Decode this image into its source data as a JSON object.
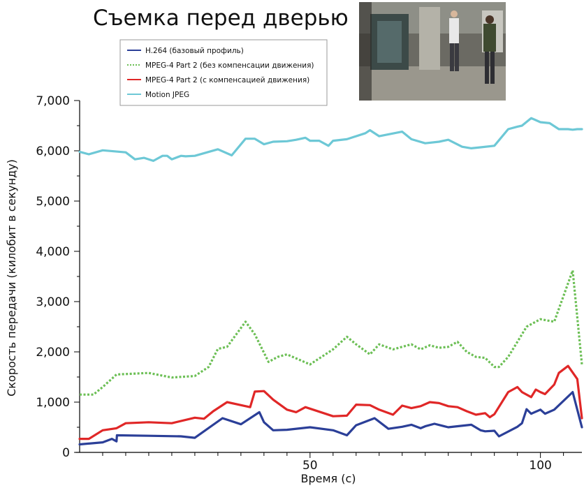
{
  "chart_data": {
    "type": "line",
    "title": "Съемка перед дверью",
    "xlabel": "Время (с)",
    "ylabel": "Скорость передачи (килобит в секунду)",
    "xlim": [
      0,
      109
    ],
    "ylim": [
      0,
      7000
    ],
    "x_ticks": [
      50,
      100
    ],
    "x_tick_labels": [
      "50",
      "100"
    ],
    "y_ticks": [
      0,
      1000,
      2000,
      3000,
      4000,
      5000,
      6000,
      7000
    ],
    "y_tick_labels": [
      "0",
      "1,000",
      "2,000",
      "3,000",
      "4,000",
      "5,000",
      "6,000",
      "7,000"
    ],
    "grid": false,
    "legend_position": "top-left",
    "series": [
      {
        "name": "H.264 (базовый профиль)",
        "color": "#2b3f98",
        "style": "solid",
        "x": [
          0,
          5,
          7,
          8,
          8.1,
          15,
          22,
          25,
          31,
          35,
          39,
          40,
          42,
          45,
          50,
          55,
          58,
          60,
          64,
          67,
          70,
          72,
          74,
          75,
          77,
          80,
          85,
          87,
          88,
          90,
          91,
          95,
          96,
          97,
          98,
          100,
          101,
          103,
          107,
          109
        ],
        "y": [
          160,
          200,
          270,
          220,
          340,
          330,
          320,
          290,
          680,
          560,
          800,
          600,
          440,
          450,
          500,
          440,
          340,
          540,
          680,
          470,
          510,
          550,
          480,
          520,
          570,
          500,
          550,
          440,
          420,
          430,
          320,
          510,
          580,
          860,
          770,
          850,
          770,
          850,
          1200,
          500
        ]
      },
      {
        "name": "MPEG-4 Part 2 (без компенсации движения)",
        "color": "#6cbf55",
        "style": "dotted",
        "x": [
          0,
          3,
          5,
          8,
          15,
          20,
          25,
          28,
          30,
          32,
          34,
          36,
          38,
          41,
          43,
          45,
          50,
          55,
          58,
          60,
          63,
          65,
          68,
          70,
          72,
          74,
          76,
          78,
          80,
          82,
          84,
          86,
          88,
          90,
          91,
          93,
          95,
          97,
          99,
          100,
          103,
          107,
          109
        ],
        "y": [
          1150,
          1150,
          1300,
          1550,
          1580,
          1490,
          1520,
          1700,
          2060,
          2100,
          2350,
          2600,
          2350,
          1800,
          1900,
          1950,
          1750,
          2050,
          2300,
          2150,
          1950,
          2150,
          2050,
          2100,
          2150,
          2050,
          2130,
          2080,
          2100,
          2200,
          2000,
          1900,
          1880,
          1700,
          1700,
          1900,
          2200,
          2500,
          2600,
          2650,
          2600,
          3620,
          1750
        ]
      },
      {
        "name": "MPEG-4 Part 2 (с компенсацией движения)",
        "color": "#e02727",
        "style": "solid",
        "x": [
          0,
          2,
          5,
          8,
          10,
          15,
          20,
          25,
          27,
          29,
          32,
          35,
          37,
          38,
          40,
          42,
          45,
          47,
          49,
          52,
          55,
          58,
          60,
          63,
          65,
          68,
          70,
          72,
          74,
          76,
          78,
          80,
          82,
          84,
          86,
          88,
          89,
          90,
          93,
          95,
          96,
          98,
          99,
          100,
          101,
          103,
          104,
          106,
          108,
          109
        ],
        "y": [
          270,
          270,
          440,
          480,
          580,
          600,
          580,
          690,
          670,
          820,
          1000,
          940,
          900,
          1210,
          1220,
          1050,
          850,
          800,
          900,
          810,
          720,
          730,
          950,
          940,
          850,
          750,
          930,
          880,
          920,
          1000,
          980,
          920,
          900,
          820,
          750,
          780,
          700,
          760,
          1200,
          1300,
          1200,
          1100,
          1250,
          1200,
          1160,
          1350,
          1580,
          1720,
          1460,
          680
        ]
      },
      {
        "name": "Motion JPEG",
        "color": "#6dc8d6",
        "style": "solid",
        "x": [
          0,
          2,
          5,
          10,
          12,
          14,
          16,
          18,
          19,
          20,
          22,
          23,
          25,
          30,
          33,
          36,
          37,
          38,
          40,
          42,
          45,
          47,
          49,
          50,
          52,
          54,
          55,
          58,
          62,
          63,
          65,
          70,
          72,
          75,
          78,
          80,
          83,
          85,
          87,
          90,
          93,
          95,
          96,
          98,
          100,
          102,
          104,
          106,
          107,
          108,
          109
        ],
        "y": [
          5980,
          5930,
          6010,
          5970,
          5830,
          5860,
          5800,
          5900,
          5900,
          5830,
          5900,
          5890,
          5900,
          6030,
          5910,
          6240,
          6240,
          6240,
          6130,
          6180,
          6190,
          6220,
          6260,
          6200,
          6200,
          6100,
          6200,
          6230,
          6350,
          6410,
          6290,
          6380,
          6230,
          6150,
          6180,
          6220,
          6080,
          6050,
          6070,
          6100,
          6430,
          6480,
          6500,
          6650,
          6570,
          6550,
          6430,
          6430,
          6420,
          6430,
          6430
        ]
      }
    ]
  },
  "photo": {
    "description_icon": "corridor-photo"
  }
}
